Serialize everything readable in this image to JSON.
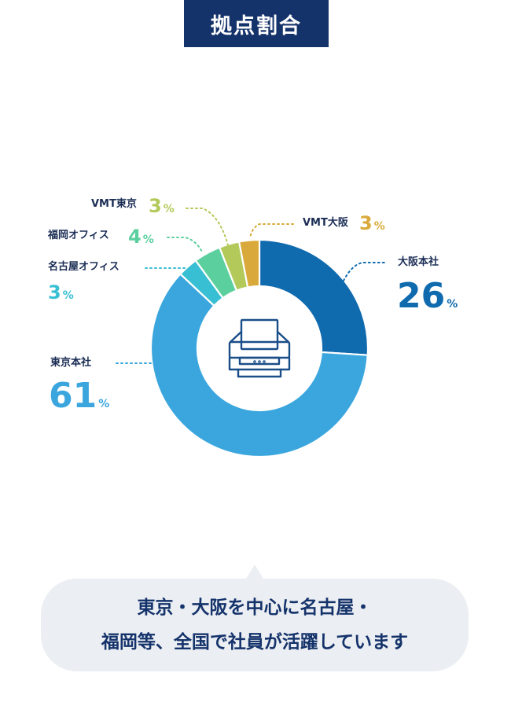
{
  "header": {
    "title": "拠点割合"
  },
  "chart_data": {
    "type": "pie",
    "title": "拠点割合",
    "categories": [
      "大阪本社",
      "東京本社",
      "名古屋オフィス",
      "福岡オフィス",
      "VMT東京",
      "VMT大阪"
    ],
    "values": [
      26,
      61,
      3,
      4,
      3,
      3
    ],
    "unit": "%",
    "colors": [
      "#0f6aae",
      "#3ba6de",
      "#39bfd3",
      "#5ccf9f",
      "#b3ca5b",
      "#d9aa3b"
    ]
  },
  "labels": [
    {
      "name": "大阪本社",
      "value": "26",
      "unit": "%",
      "color": "#0f6aae"
    },
    {
      "name": "東京本社",
      "value": "61",
      "unit": "%",
      "color": "#3ba6de"
    },
    {
      "name": "名古屋オフィス",
      "value": "3",
      "unit": "%",
      "color": "#39bfd3"
    },
    {
      "name": "福岡オフィス",
      "value": "4",
      "unit": "%",
      "color": "#5ccf9f"
    },
    {
      "name": "VMT東京",
      "value": "3",
      "unit": "%",
      "color": "#b3ca5b"
    },
    {
      "name": "VMT大阪",
      "value": "3",
      "unit": "%",
      "color": "#d9aa3b"
    }
  ],
  "center_icon": "printer-icon",
  "message": {
    "line1": "東京・大阪を中心に名古屋・",
    "line2": "福岡等、全国で社員が活躍しています"
  }
}
